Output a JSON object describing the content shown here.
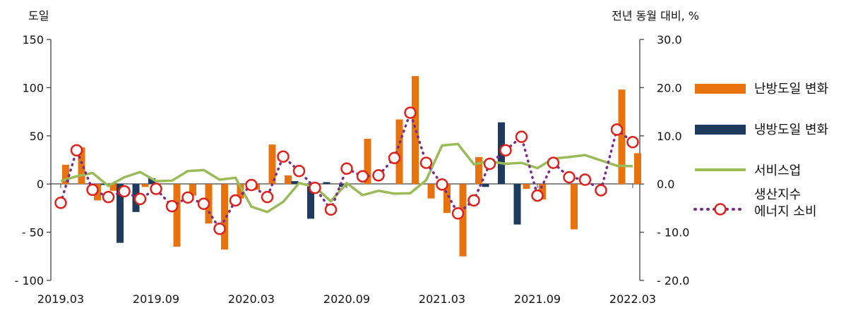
{
  "chart_data": {
    "type": "bar",
    "left_unit": "도일",
    "right_unit": "전년 동월 대비, %",
    "ylim_left": [
      -100,
      150
    ],
    "ylim_right": [
      -20.0,
      30.0
    ],
    "left_ticks": [
      "150",
      "100",
      "50",
      "0",
      "- 50",
      "- 100"
    ],
    "right_ticks": [
      "30.0",
      "20.0",
      "10.0",
      "0.0",
      "- 10.0",
      "- 20.0"
    ],
    "x_tick_labels": [
      "2019.03",
      "2019.09",
      "2020.03",
      "2020.09",
      "2021.03",
      "2021.09",
      "2022.03"
    ],
    "months": [
      "2019.03",
      "2019.04",
      "2019.05",
      "2019.06",
      "2019.07",
      "2019.08",
      "2019.09",
      "2019.10",
      "2019.11",
      "2019.12",
      "2020.01",
      "2020.02",
      "2020.03",
      "2020.04",
      "2020.05",
      "2020.06",
      "2020.07",
      "2020.08",
      "2020.09",
      "2020.10",
      "2020.11",
      "2020.12",
      "2021.01",
      "2021.02",
      "2021.03",
      "2021.04",
      "2021.05",
      "2021.06",
      "2021.07",
      "2021.08",
      "2021.09",
      "2021.10",
      "2021.11",
      "2021.12",
      "2022.01",
      "2022.02",
      "2022.03"
    ],
    "series": [
      {
        "name": "난방도일 변화",
        "axis": "left",
        "kind": "bar",
        "color": "#E8730C",
        "values": [
          20,
          38,
          -17,
          -7,
          0,
          -3,
          0,
          -65,
          -12,
          -41,
          -68,
          -15,
          -6,
          41,
          9,
          0,
          0,
          0,
          0,
          47,
          0,
          67,
          112,
          -15,
          -30,
          -75,
          28,
          0,
          0,
          -5,
          -16,
          0,
          -47,
          0,
          0,
          98,
          32
        ]
      },
      {
        "name": "냉방도일 변화",
        "axis": "left",
        "kind": "bar",
        "color": "#1F3A5F",
        "values": [
          0,
          0,
          0,
          -1,
          -61,
          -29,
          6,
          0,
          0,
          0,
          0,
          0,
          0,
          0,
          0,
          3,
          -36,
          2,
          -3,
          0,
          0,
          0,
          0,
          0,
          0,
          0,
          0,
          -3,
          64,
          -42,
          0,
          0,
          0,
          0,
          0,
          0,
          0
        ]
      },
      {
        "name": "서비스업",
        "axis": "right",
        "kind": "line",
        "color": "#9BBB59",
        "values": [
          0.6,
          1.6,
          2.3,
          -0.4,
          1.4,
          2.5,
          0.6,
          0.7,
          2.7,
          2.9,
          0.9,
          1.3,
          -4.7,
          -5.8,
          -3.7,
          0.2,
          -0.6,
          -3.6,
          0.2,
          -2.3,
          -1.4,
          -2.0,
          -1.9,
          0.8,
          8.0,
          8.3,
          4.1,
          4.7,
          4.2,
          4.4,
          3.3,
          5.3,
          5.6,
          6.0,
          4.9,
          3.8,
          3.7
        ]
      },
      {
        "name": "생산지수 에너지 소비",
        "axis": "right",
        "kind": "dotted-line-markers",
        "color": "#7B2C8B",
        "marker_color": "#E0201B",
        "values": [
          -3.9,
          7.0,
          -1.2,
          -2.7,
          -1.5,
          -3.1,
          -1.0,
          -4.6,
          -2.8,
          -4.1,
          -9.3,
          -3.4,
          -0.2,
          -2.7,
          5.7,
          2.7,
          -0.8,
          -5.3,
          3.2,
          1.6,
          1.8,
          5.4,
          14.8,
          4.4,
          -0.1,
          -6.1,
          -3.4,
          4.2,
          7.0,
          9.8,
          -2.4,
          4.4,
          1.4,
          0.9,
          -1.3,
          11.3,
          8.7
        ]
      }
    ],
    "legend_position": "right",
    "grid": false
  },
  "legend": {
    "heating": "난방도일 변화",
    "cooling": "냉방도일 변화",
    "services": "서비스업",
    "energy_line1": "생산지수",
    "energy_line2": "에너지 소비"
  }
}
